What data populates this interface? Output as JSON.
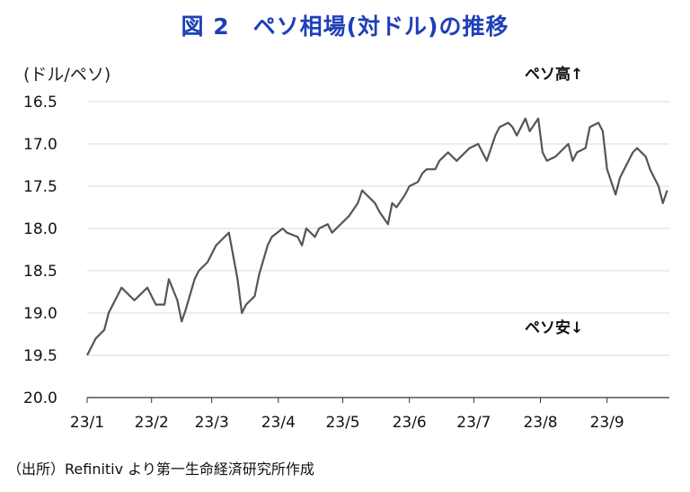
{
  "title": "図 2　ペソ相場(対ドル)の推移",
  "unit_label": "(ドル/ペソ)",
  "annotations": {
    "up": "ペソ高↑",
    "down": "ペソ安↓"
  },
  "source": "（出所）Refinitiv より第一生命経済研究所作成",
  "colors": {
    "title": "#1e3fb8",
    "line": "#555555",
    "grid": "#d9d9d9"
  },
  "chart_data": {
    "type": "line",
    "title": "図 2　ペソ相場(対ドル)の推移",
    "xlabel": "",
    "ylabel": "(ドル/ペソ)",
    "y_inverted": true,
    "ylim": [
      16.5,
      20.0
    ],
    "yticks": [
      "16.5",
      "17.0",
      "17.5",
      "18.0",
      "18.5",
      "19.0",
      "19.5",
      "20.0"
    ],
    "ytick_values": [
      16.5,
      17.0,
      17.5,
      18.0,
      18.5,
      19.0,
      19.5,
      20.0
    ],
    "xticks": [
      "23/1",
      "23/2",
      "23/3",
      "23/4",
      "23/5",
      "23/6",
      "23/7",
      "23/8",
      "23/9"
    ],
    "grid": true,
    "series": [
      {
        "x": [
          "2023-01-02",
          "2023-01-04",
          "2023-01-06",
          "2023-01-10",
          "2023-01-12",
          "2023-01-16",
          "2023-01-18",
          "2023-01-20",
          "2023-01-24",
          "2023-01-26",
          "2023-01-30",
          "2023-02-01",
          "2023-02-03",
          "2023-02-07",
          "2023-02-09",
          "2023-02-13",
          "2023-02-15",
          "2023-02-17",
          "2023-02-21",
          "2023-02-23",
          "2023-02-27",
          "2023-03-01",
          "2023-03-03",
          "2023-03-07",
          "2023-03-09",
          "2023-03-13",
          "2023-03-15",
          "2023-03-17",
          "2023-03-21",
          "2023-03-23",
          "2023-03-27",
          "2023-03-29",
          "2023-04-03",
          "2023-04-05",
          "2023-04-10",
          "2023-04-12",
          "2023-04-14",
          "2023-04-18",
          "2023-04-20",
          "2023-04-24",
          "2023-04-26",
          "2023-04-28",
          "2023-05-02",
          "2023-05-04",
          "2023-05-08",
          "2023-05-10",
          "2023-05-12",
          "2023-05-16",
          "2023-05-18",
          "2023-05-22",
          "2023-05-24",
          "2023-05-26",
          "2023-05-30",
          "2023-06-01",
          "2023-06-05",
          "2023-06-07",
          "2023-06-09",
          "2023-06-13",
          "2023-06-15",
          "2023-06-19",
          "2023-06-21",
          "2023-06-23",
          "2023-06-27",
          "2023-06-29",
          "2023-07-03",
          "2023-07-05",
          "2023-07-07",
          "2023-07-11",
          "2023-07-13",
          "2023-07-17",
          "2023-07-19",
          "2023-07-21",
          "2023-07-25",
          "2023-07-27",
          "2023-07-31",
          "2023-08-02",
          "2023-08-04",
          "2023-08-08",
          "2023-08-10",
          "2023-08-14",
          "2023-08-16",
          "2023-08-18",
          "2023-08-22",
          "2023-08-24",
          "2023-08-28",
          "2023-08-30",
          "2023-09-01",
          "2023-09-05",
          "2023-09-07",
          "2023-09-11",
          "2023-09-13",
          "2023-09-15",
          "2023-09-19",
          "2023-09-21",
          "2023-09-25",
          "2023-09-27",
          "2023-09-29"
        ],
        "values": [
          19.5,
          19.4,
          19.3,
          19.2,
          19.0,
          18.8,
          18.7,
          18.75,
          18.85,
          18.8,
          18.7,
          18.8,
          18.9,
          18.9,
          18.6,
          18.85,
          19.1,
          18.95,
          18.6,
          18.5,
          18.4,
          18.3,
          18.2,
          18.1,
          18.05,
          18.6,
          19.0,
          18.9,
          18.8,
          18.55,
          18.2,
          18.1,
          18.0,
          18.05,
          18.1,
          18.2,
          18.0,
          18.1,
          18.0,
          17.95,
          18.05,
          18.0,
          17.9,
          17.85,
          17.7,
          17.55,
          17.6,
          17.7,
          17.8,
          17.95,
          17.7,
          17.75,
          17.6,
          17.5,
          17.45,
          17.35,
          17.3,
          17.3,
          17.2,
          17.1,
          17.15,
          17.2,
          17.1,
          17.05,
          17.0,
          17.1,
          17.2,
          16.9,
          16.8,
          16.75,
          16.8,
          16.9,
          16.7,
          16.85,
          16.7,
          17.1,
          17.2,
          17.15,
          17.1,
          17.0,
          17.2,
          17.1,
          17.05,
          16.8,
          16.75,
          16.85,
          17.3,
          17.6,
          17.4,
          17.2,
          17.1,
          17.05,
          17.15,
          17.3,
          17.5,
          17.7,
          17.55
        ]
      }
    ]
  }
}
